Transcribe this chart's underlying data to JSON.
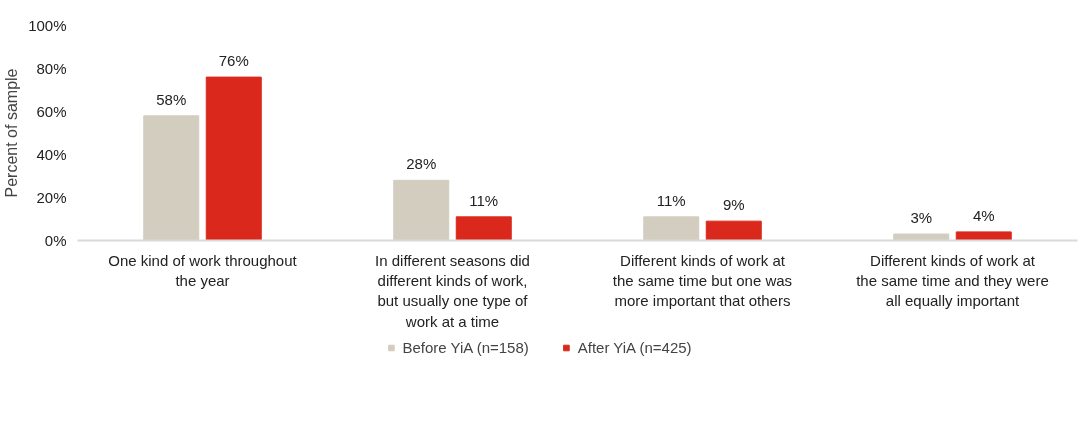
{
  "chart_data": {
    "type": "bar",
    "ylabel": "Percent of sample",
    "categories": [
      "One kind of work throughout the year",
      "In different seasons did different kinds of work, but usually one type of work at a time",
      "Different kinds of work at the same time but one was more important that others",
      "Different kinds of work at the same time and they were all equally important"
    ],
    "series": [
      {
        "name": "Before YiA (n=158)",
        "color": "#d3cdc0",
        "values": [
          58,
          28,
          11,
          3
        ],
        "value_labels": [
          "58%",
          "28%",
          "11%",
          "3%"
        ]
      },
      {
        "name": "After YiA (n=425)",
        "color": "#da291c",
        "values": [
          76,
          11,
          9,
          4
        ],
        "value_labels": [
          "76%",
          "11%",
          "9%",
          "4%"
        ]
      }
    ],
    "ylim": [
      0,
      100
    ],
    "yticks": [
      {
        "value": 0,
        "label": "0%"
      },
      {
        "value": 20,
        "label": "20%"
      },
      {
        "value": 40,
        "label": "40%"
      },
      {
        "value": 60,
        "label": "60%"
      },
      {
        "value": 80,
        "label": "80%"
      },
      {
        "value": 100,
        "label": "100%"
      }
    ],
    "grid": false,
    "legend": "bottom"
  }
}
